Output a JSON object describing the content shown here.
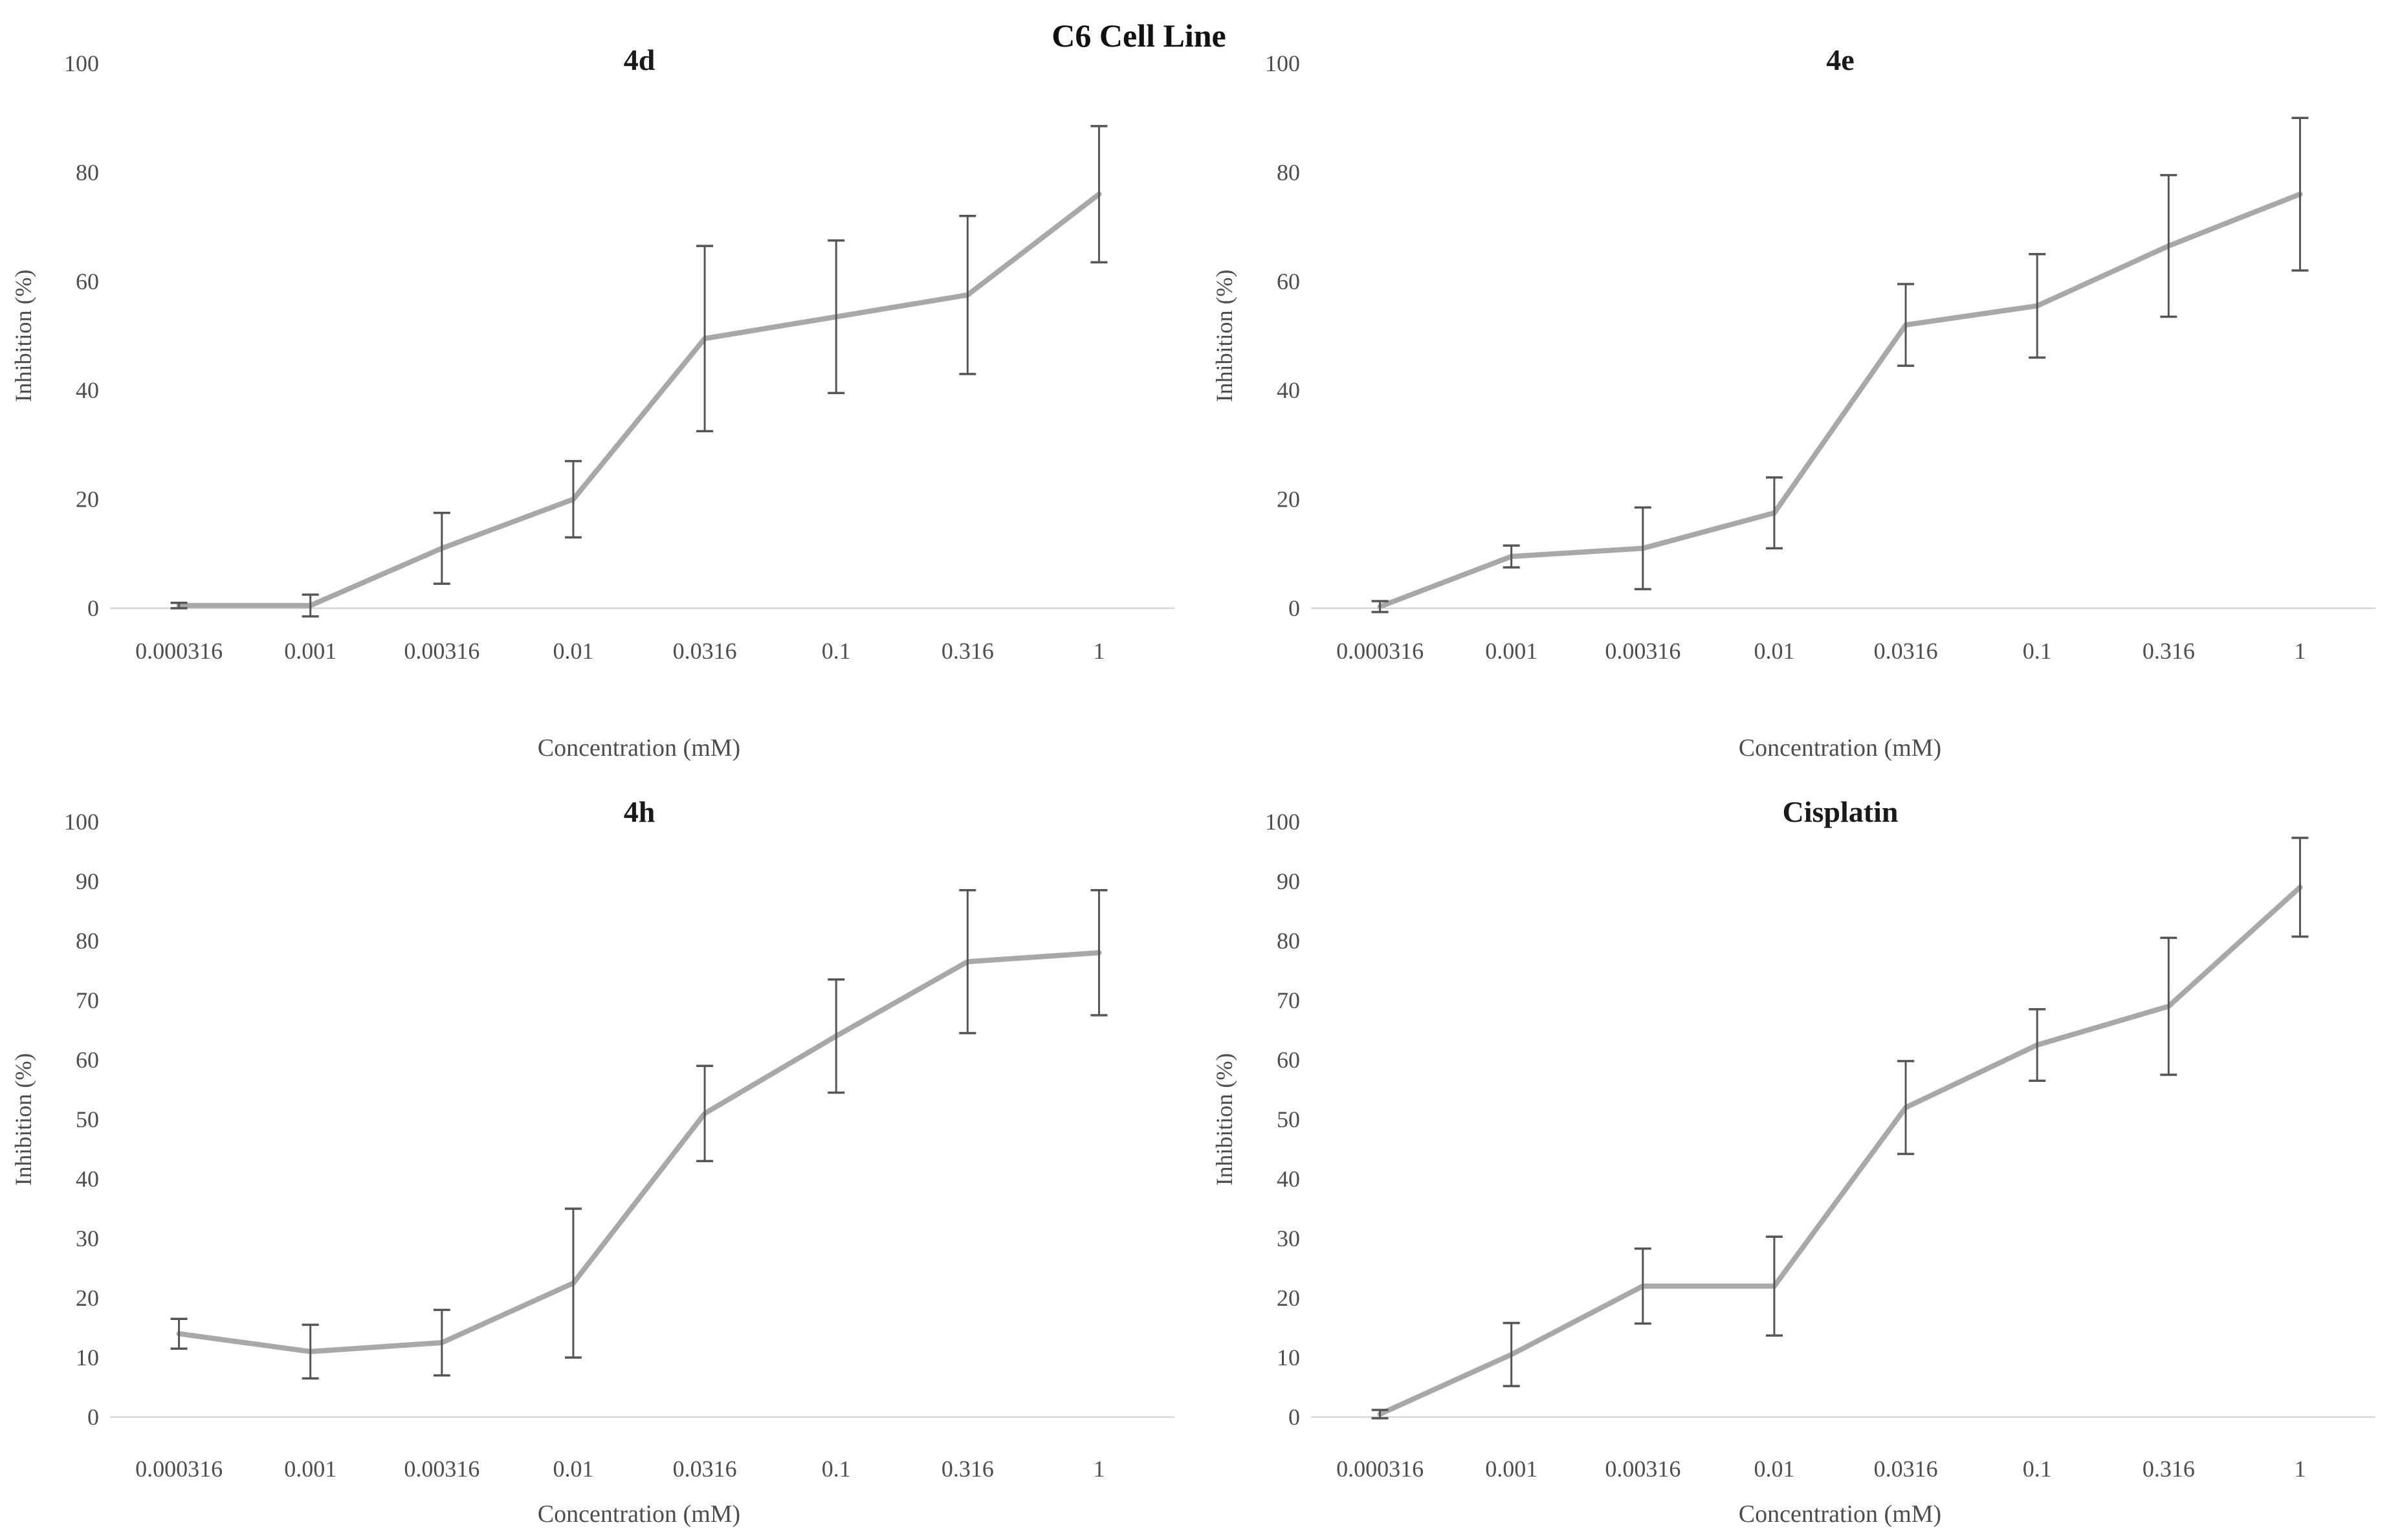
{
  "figure": {
    "title": "C6 Cell Line"
  },
  "colors": {
    "series_line": "#a8a8a8",
    "error_bar": "#555555",
    "axis_line": "#d6d6d6",
    "tick_text": "#4d4d4d",
    "title_text": "#1a1a1a"
  },
  "chart_data": [
    {
      "id": "4d",
      "type": "line",
      "title": "4d",
      "xlabel": "Concentration (mM)",
      "ylabel": "Inhibition (%)",
      "categories": [
        "0.000316",
        "0.001",
        "0.00316",
        "0.01",
        "0.0316",
        "0.1",
        "0.316",
        "1"
      ],
      "values": [
        0.5,
        0.5,
        11,
        20,
        49.5,
        53.5,
        57.5,
        76
      ],
      "errors": [
        0.5,
        2,
        6.5,
        7,
        17,
        14,
        14.5,
        12.5
      ],
      "ylim": [
        0,
        100
      ],
      "y_tick_step": 20,
      "grid": false,
      "legend": "none"
    },
    {
      "id": "4e",
      "type": "line",
      "title": "4e",
      "xlabel": "Concentration (mM)",
      "ylabel": "Inhibition (%)",
      "categories": [
        "0.000316",
        "0.001",
        "0.00316",
        "0.01",
        "0.0316",
        "0.1",
        "0.316",
        "1"
      ],
      "values": [
        0.3,
        9.5,
        11,
        17.5,
        52,
        55.5,
        66.5,
        76
      ],
      "errors": [
        1,
        2,
        7.5,
        6.5,
        7.5,
        9.5,
        13,
        14
      ],
      "ylim": [
        0,
        100
      ],
      "y_tick_step": 20,
      "grid": false,
      "legend": "none"
    },
    {
      "id": "4h",
      "type": "line",
      "title": "4h",
      "xlabel": "Concentration (mM)",
      "ylabel": "Inhibition (%)",
      "categories": [
        "0.000316",
        "0.001",
        "0.00316",
        "0.01",
        "0.0316",
        "0.1",
        "0.316",
        "1"
      ],
      "values": [
        14,
        11,
        12.5,
        22.5,
        51,
        64,
        76.5,
        78
      ],
      "errors": [
        2.5,
        4.5,
        5.5,
        12.5,
        8,
        9.5,
        12,
        10.5
      ],
      "ylim": [
        0,
        100
      ],
      "y_tick_step": 10,
      "grid": false,
      "legend": "none"
    },
    {
      "id": "Cisplatin",
      "type": "line",
      "title": "Cisplatin",
      "xlabel": "Concentration (mM)",
      "ylabel": "Inhibition (%)",
      "categories": [
        "0.000316",
        "0.001",
        "0.00316",
        "0.01",
        "0.0316",
        "0.1",
        "0.316",
        "1"
      ],
      "values": [
        0.5,
        10.5,
        22,
        22,
        52,
        62.5,
        69,
        89
      ],
      "errors": [
        0.7,
        5.3,
        6.3,
        8.3,
        7.8,
        6,
        11.5,
        8.3
      ],
      "ylim": [
        0,
        100
      ],
      "y_tick_step": 10,
      "grid": false,
      "legend": "none"
    }
  ]
}
